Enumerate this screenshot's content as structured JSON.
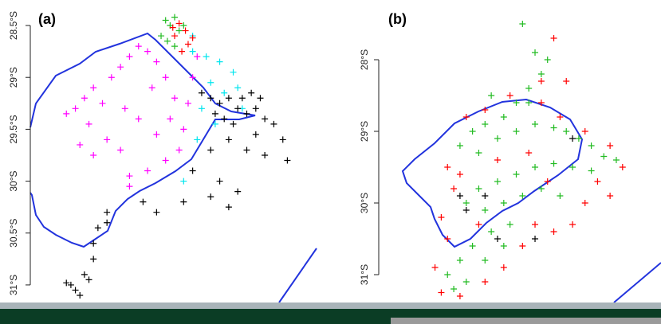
{
  "chart_data": [
    {
      "type": "scatter",
      "title": "(a)",
      "xlim": [
        26.9,
        30.1
      ],
      "ylim": [
        -31.2,
        -28.4
      ],
      "yticks": [
        {
          "value": -28.5,
          "label": "28.5°S"
        },
        {
          "value": -29,
          "label": "29°S"
        },
        {
          "value": -29.5,
          "label": "29.5°S"
        },
        {
          "value": -30,
          "label": "30°S"
        },
        {
          "value": -30.5,
          "label": "30.5°S"
        },
        {
          "value": -31,
          "label": "31°S"
        }
      ],
      "series": [
        {
          "color": "#ff00ff",
          "x": [
            27.4,
            27.5,
            27.6,
            27.7,
            27.55,
            27.8,
            27.9,
            28.0,
            28.1,
            28.2,
            28.3,
            28.25,
            28.4,
            28.5,
            28.45,
            28.6,
            28.55,
            28.4,
            28.2,
            28.0,
            27.9,
            27.75,
            27.6,
            27.45,
            28.1,
            28.3,
            27.95,
            28.7,
            28.75,
            28.65,
            28.0,
            27.3
          ],
          "y": [
            -29.3,
            -29.2,
            -29.1,
            -29.25,
            -29.45,
            -29.0,
            -28.9,
            -28.8,
            -28.7,
            -28.75,
            -28.85,
            -29.1,
            -29.0,
            -29.2,
            -29.4,
            -29.5,
            -29.7,
            -29.8,
            -29.9,
            -29.95,
            -29.7,
            -29.6,
            -29.75,
            -29.65,
            -29.4,
            -29.55,
            -29.3,
            -29.0,
            -28.8,
            -29.25,
            -30.05,
            -29.35
          ]
        },
        {
          "color": "#00e5ee",
          "x": [
            28.7,
            28.85,
            29.0,
            29.15,
            28.9,
            29.05,
            28.8,
            28.95,
            29.2,
            29.25,
            28.75,
            28.6,
            28.7
          ],
          "y": [
            -28.75,
            -28.8,
            -28.85,
            -28.95,
            -29.05,
            -29.15,
            -29.3,
            -29.45,
            -29.1,
            -29.3,
            -29.6,
            -30.0,
            -28.6
          ]
        },
        {
          "color": "#22bb22",
          "x": [
            28.4,
            28.45,
            28.5,
            28.35,
            28.55,
            28.42,
            28.5,
            28.6
          ],
          "y": [
            -28.45,
            -28.5,
            -28.42,
            -28.6,
            -28.55,
            -28.65,
            -28.7,
            -28.5
          ]
        },
        {
          "color": "#ff0000",
          "x": [
            28.55,
            28.62,
            28.5,
            28.65,
            28.58,
            28.7,
            28.48
          ],
          "y": [
            -28.48,
            -28.55,
            -28.6,
            -28.68,
            -28.75,
            -28.62,
            -28.52
          ]
        },
        {
          "color": "#000000",
          "x": [
            28.9,
            29.0,
            29.1,
            29.2,
            29.3,
            29.4,
            29.5,
            29.05,
            28.95,
            29.15,
            29.25,
            29.35,
            29.45,
            29.6,
            29.7,
            29.75,
            29.5,
            29.3,
            29.1,
            28.9,
            28.7,
            29.0,
            29.2,
            28.9,
            28.6,
            29.1,
            28.3,
            28.15,
            27.75,
            27.65,
            27.6,
            27.75,
            27.6,
            27.5,
            27.55,
            27.35,
            27.4,
            27.45,
            27.3,
            29.4,
            28.8
          ],
          "y": [
            -29.2,
            -29.25,
            -29.2,
            -29.3,
            -29.35,
            -29.3,
            -29.4,
            -29.4,
            -29.35,
            -29.45,
            -29.2,
            -29.15,
            -29.2,
            -29.45,
            -29.6,
            -29.8,
            -29.75,
            -29.7,
            -29.6,
            -29.7,
            -29.9,
            -30.0,
            -30.1,
            -30.15,
            -30.2,
            -30.25,
            -30.3,
            -30.2,
            -30.3,
            -30.45,
            -30.6,
            -30.4,
            -30.75,
            -30.9,
            -30.95,
            -31.0,
            -31.05,
            -31.1,
            -30.98,
            -29.55,
            -29.15
          ]
        }
      ]
    },
    {
      "type": "scatter",
      "title": "(b)",
      "xlim": [
        26.6,
        31.0
      ],
      "ylim": [
        -31.4,
        -27.2
      ],
      "yticks": [
        {
          "value": -28,
          "label": "28°S"
        },
        {
          "value": -29,
          "label": "29°S"
        },
        {
          "value": -30,
          "label": "30°S"
        },
        {
          "value": -31,
          "label": "31°S"
        }
      ],
      "series": [
        {
          "color": "#ff0000",
          "x": [
            28.0,
            28.3,
            28.7,
            29.2,
            29.5,
            29.9,
            30.3,
            30.5,
            30.3,
            29.9,
            29.7,
            29.4,
            29.1,
            28.9,
            28.6,
            28.3,
            27.9,
            27.6,
            27.5,
            27.7,
            27.6,
            27.8,
            27.7,
            27.9,
            28.2,
            28.5,
            29.0,
            29.3,
            29.4,
            29.2,
            29.6,
            30.1
          ],
          "y": [
            -28.8,
            -28.7,
            -28.5,
            -28.6,
            -28.8,
            -29.0,
            -29.2,
            -29.5,
            -29.9,
            -30.0,
            -30.3,
            -30.4,
            -30.3,
            -30.6,
            -30.9,
            -31.1,
            -31.3,
            -31.25,
            -30.9,
            -30.5,
            -30.2,
            -29.8,
            -29.5,
            -29.6,
            -30.3,
            -29.4,
            -29.3,
            -29.7,
            -27.7,
            -28.3,
            -28.3,
            -29.7
          ]
        },
        {
          "color": "#22bb22",
          "x": [
            28.9,
            29.1,
            29.3,
            29.2,
            29.0,
            28.8,
            28.6,
            28.3,
            28.1,
            27.9,
            28.2,
            28.5,
            28.8,
            29.1,
            29.4,
            29.6,
            29.8,
            30.0,
            30.2,
            30.4,
            30.0,
            29.7,
            29.4,
            29.1,
            28.8,
            28.5,
            28.2,
            28.0,
            28.3,
            28.6,
            28.9,
            29.2,
            29.5,
            28.7,
            28.4,
            28.1,
            27.9,
            27.7,
            27.8,
            28.0,
            28.3,
            28.6,
            29.0,
            28.4
          ],
          "y": [
            -27.5,
            -27.9,
            -28.0,
            -28.2,
            -28.4,
            -28.6,
            -28.8,
            -28.9,
            -29.0,
            -29.2,
            -29.3,
            -29.1,
            -29.0,
            -28.9,
            -28.95,
            -29.0,
            -29.1,
            -29.2,
            -29.35,
            -29.4,
            -29.55,
            -29.5,
            -29.45,
            -29.5,
            -29.6,
            -29.7,
            -29.8,
            -30.0,
            -30.1,
            -30.0,
            -29.9,
            -29.8,
            -29.9,
            -30.3,
            -30.4,
            -30.6,
            -30.8,
            -31.0,
            -31.2,
            -31.1,
            -30.8,
            -30.6,
            -28.6,
            -28.5
          ]
        },
        {
          "color": "#000000",
          "x": [
            28.0,
            28.3,
            29.7,
            29.1,
            28.5,
            27.9
          ],
          "y": [
            -30.1,
            -29.9,
            -29.1,
            -30.5,
            -30.5,
            -29.9
          ]
        }
      ]
    }
  ]
}
